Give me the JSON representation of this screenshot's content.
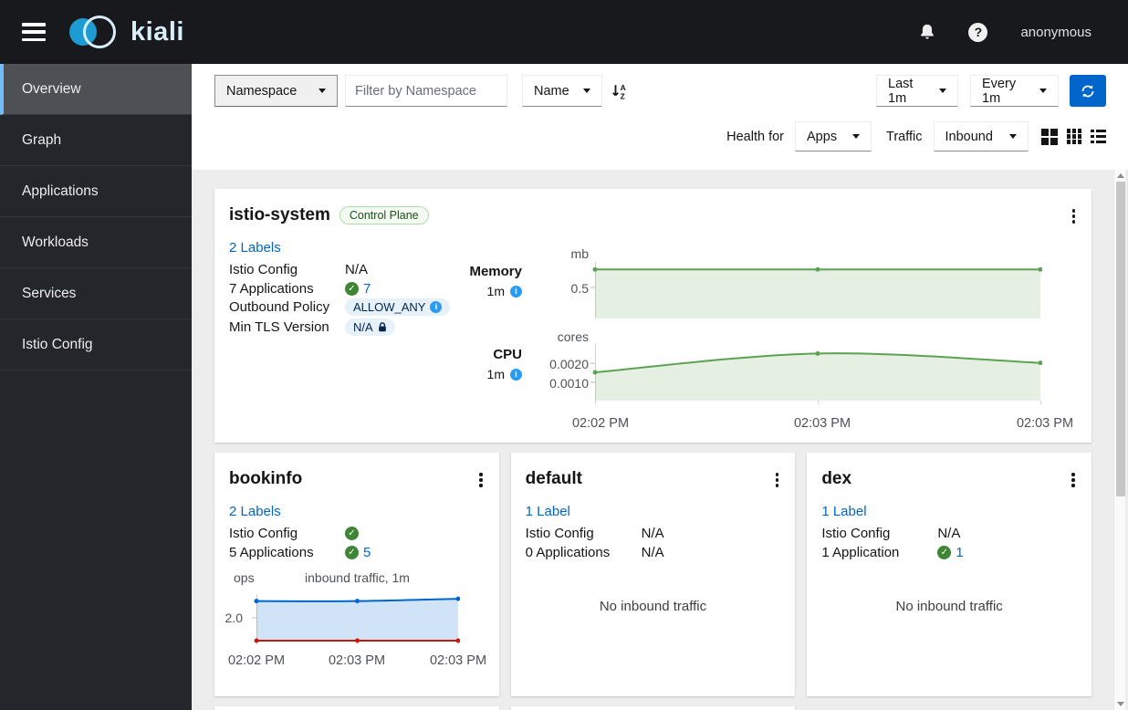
{
  "masthead": {
    "brand": "kiali",
    "user": "anonymous"
  },
  "sidebar": {
    "items": [
      "Overview",
      "Graph",
      "Applications",
      "Workloads",
      "Services",
      "Istio Config"
    ],
    "active": "Overview"
  },
  "toolbar": {
    "namespace_select": "Namespace",
    "filter_placeholder": "Filter by Namespace",
    "sort_select": "Name",
    "duration_select": "Last 1m",
    "refresh_select": "Every 1m",
    "health_for_label": "Health for",
    "health_for_select": "Apps",
    "traffic_label": "Traffic",
    "traffic_select": "Inbound"
  },
  "namespaces": {
    "istio_system": {
      "name": "istio-system",
      "type_badge": "Control Plane",
      "labels_link": "2 Labels",
      "istio_config_label": "Istio Config",
      "istio_config_value": "N/A",
      "apps_label": "7 Applications",
      "apps_value": "7",
      "outbound_label": "Outbound Policy",
      "outbound_value": "ALLOW_ANY",
      "tls_label": "Min TLS Version",
      "tls_value": "N/A",
      "memory_label": "Memory",
      "memory_duration": "1m",
      "cpu_label": "CPU",
      "cpu_duration": "1m"
    },
    "bookinfo": {
      "name": "bookinfo",
      "labels_link": "2 Labels",
      "istio_config_label": "Istio Config",
      "apps_label": "5 Applications",
      "apps_value": "5"
    },
    "default_ns": {
      "name": "default",
      "labels_link": "1 Label",
      "istio_config_label": "Istio Config",
      "istio_config_value": "N/A",
      "apps_label": "0 Applications",
      "apps_value": "N/A",
      "empty_text": "No inbound traffic"
    },
    "dex": {
      "name": "dex",
      "labels_link": "1 Label",
      "istio_config_label": "Istio Config",
      "istio_config_value": "N/A",
      "apps_label": "1 Application",
      "apps_value": "1",
      "empty_text": "No inbound traffic"
    }
  },
  "chart_data": [
    {
      "id": "istio-system-memory",
      "type": "area",
      "title": "mb",
      "x": [
        "02:02 PM",
        "02:03 PM",
        "02:03 PM"
      ],
      "ylim": [
        0,
        0.9
      ],
      "yticks": [
        {
          "v": 0.5,
          "label": "0.5"
        }
      ],
      "xticks": false,
      "series": [
        {
          "name": "memory",
          "values": [
            0.78,
            0.78,
            0.78
          ],
          "color": "#5ba352",
          "fill": "rgba(91,163,82,0.16)"
        }
      ]
    },
    {
      "id": "istio-system-cpu",
      "type": "area",
      "title": "cores",
      "x": [
        "02:02 PM",
        "02:03 PM",
        "02:03 PM"
      ],
      "ylim": [
        0,
        0.003
      ],
      "yticks": [
        {
          "v": 0.002,
          "label": "0.0020"
        },
        {
          "v": 0.001,
          "label": "0.0010"
        }
      ],
      "xticks": true,
      "series": [
        {
          "name": "cpu",
          "values": [
            0.0015,
            0.0025,
            0.002
          ],
          "color": "#5ba352",
          "fill": "rgba(91,163,82,0.16)"
        }
      ]
    },
    {
      "id": "bookinfo-inbound-traffic",
      "type": "area",
      "title": "inbound traffic, 1m",
      "ylabel": "ops",
      "x": [
        "02:02 PM",
        "02:03 PM",
        "02:03 PM"
      ],
      "ylim": [
        0,
        4
      ],
      "yticks": [
        {
          "v": 2,
          "label": "2.0"
        }
      ],
      "xticks": true,
      "series": [
        {
          "name": "ops",
          "values": [
            3.4,
            3.4,
            3.6
          ],
          "color": "#0066cc",
          "fill": "rgba(0,102,204,0.18)"
        },
        {
          "name": "errors",
          "values": [
            0,
            0,
            0
          ],
          "color": "#c9190b"
        }
      ]
    }
  ],
  "colors": {
    "accent": "#0066cc",
    "success": "#3e8635",
    "chart_green": "#5ba352",
    "danger": "#c9190b",
    "masthead_bg": "#17191c",
    "sidebar_bg": "#23262a",
    "active_accent": "#73bcf7"
  }
}
